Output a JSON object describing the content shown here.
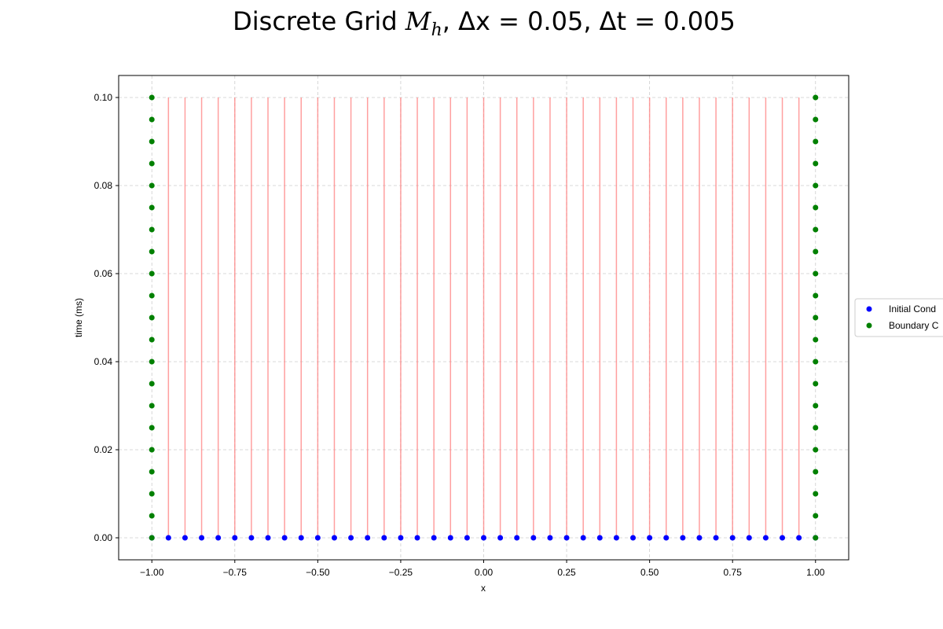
{
  "chart_data": {
    "type": "scatter",
    "title": {
      "prefix": "Discrete Grid ",
      "grid_symbol": "M",
      "grid_subscript": "h",
      "dx_label": "Δx = 0.05",
      "dt_label": "Δt = 0.005"
    },
    "xlabel": "x",
    "ylabel": "time (ms)",
    "xlim": [
      -1.1,
      1.1
    ],
    "ylim": [
      -0.005,
      0.105
    ],
    "x_ticks": [
      -1.0,
      -0.75,
      -0.5,
      -0.25,
      0.0,
      0.25,
      0.5,
      0.75,
      1.0
    ],
    "x_tick_labels": [
      "−1.00",
      "−0.75",
      "−0.50",
      "−0.25",
      "0.00",
      "0.25",
      "0.50",
      "0.75",
      "1.00"
    ],
    "y_ticks": [
      0.0,
      0.02,
      0.04,
      0.06,
      0.08,
      0.1
    ],
    "y_tick_labels": [
      "0.00",
      "0.02",
      "0.04",
      "0.06",
      "0.08",
      "0.10"
    ],
    "grid": true,
    "legend_placement": "center right, outside plot",
    "grid_lines": {
      "description": "interior vertical grid lines",
      "x_start": -0.95,
      "x_step": 0.05,
      "count": 39,
      "y_range": [
        0.0,
        0.1
      ],
      "color": "#ff8080"
    },
    "series": [
      {
        "name": "Initial Cond",
        "color": "#0000ff",
        "y": 0.0,
        "x_start": -1.0,
        "x_step": 0.05,
        "count": 41
      },
      {
        "name": "Boundary C",
        "color": "#008000",
        "x": [
          -1.0,
          1.0
        ],
        "y_start": 0.0,
        "y_step": 0.005,
        "count": 21
      }
    ]
  },
  "colors": {
    "grid_line": "#ff8080",
    "dashed_grid": "#cccccc",
    "initial": "#0000ff",
    "boundary": "#008000"
  }
}
